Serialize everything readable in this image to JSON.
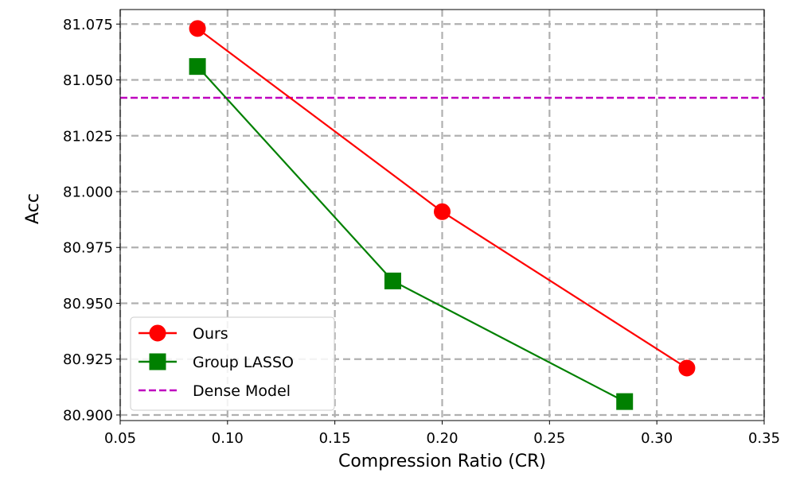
{
  "chart_data": {
    "type": "line",
    "xlabel": "Compression Ratio (CR)",
    "ylabel": "Acc",
    "xlim": [
      0.05,
      0.35
    ],
    "ylim": [
      80.8975,
      81.0815
    ],
    "xticks": [
      "0.05",
      "0.10",
      "0.15",
      "0.20",
      "0.25",
      "0.30",
      "0.35"
    ],
    "yticks": [
      "80.900",
      "80.925",
      "80.950",
      "80.975",
      "81.000",
      "81.025",
      "81.050",
      "81.075"
    ],
    "grid": true,
    "legend_position": "lower-left",
    "series": [
      {
        "name": "Ours",
        "color": "#ff0000",
        "marker": "circle",
        "line": "solid",
        "x": [
          0.086,
          0.2,
          0.314
        ],
        "y": [
          81.073,
          80.991,
          80.921
        ]
      },
      {
        "name": "Group LASSO",
        "color": "#008000",
        "marker": "square",
        "line": "solid",
        "x": [
          0.086,
          0.177,
          0.285
        ],
        "y": [
          81.056,
          80.96,
          80.906
        ]
      },
      {
        "name": "Dense Model",
        "color": "#bf00bf",
        "marker": "none",
        "line": "dashed",
        "y_constant": 81.042
      }
    ]
  }
}
